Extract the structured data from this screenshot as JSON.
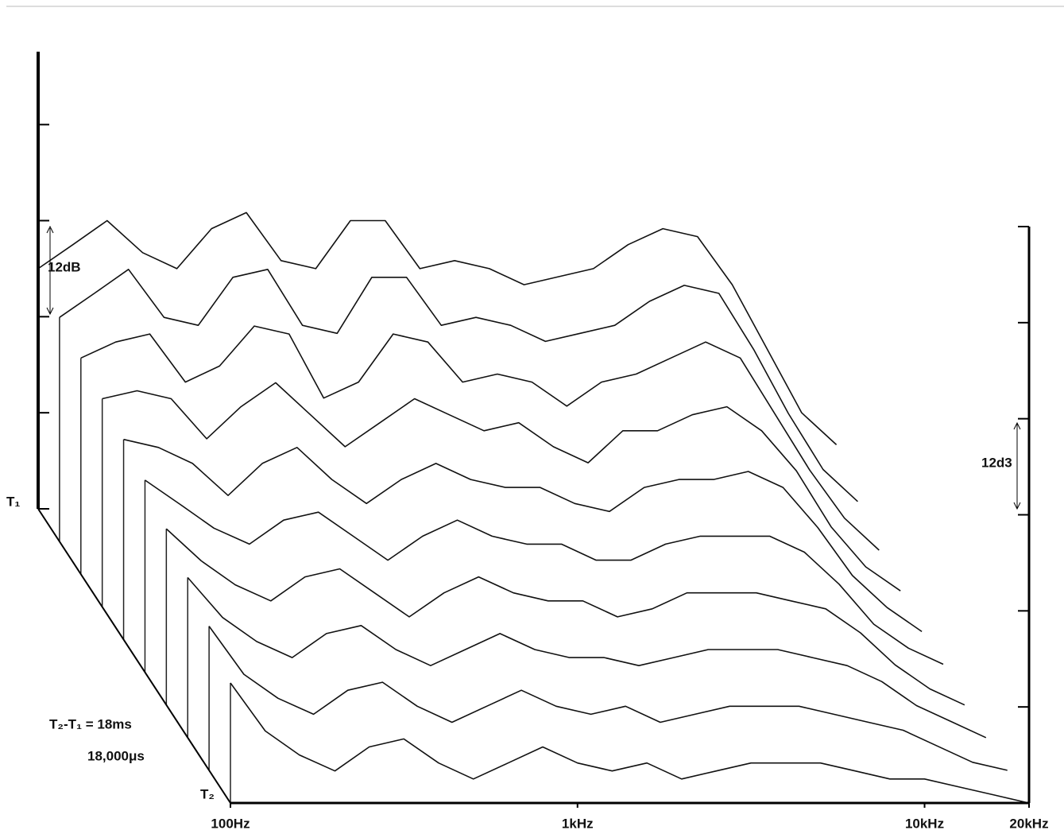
{
  "chart_data": {
    "type": "waterfall",
    "left_scale_label": "12dB",
    "right_scale_label": "12d3",
    "start_time_label": "T₁",
    "end_time_label": "T₂",
    "duration_label": "T₂-T₁ = 18ms",
    "duration_us_label": "18,000μs",
    "xscale": "log",
    "xlim": [
      100,
      20000
    ],
    "xticks": [
      {
        "value": 100,
        "label": "100Hz"
      },
      {
        "value": 1000,
        "label": "1kHz"
      },
      {
        "value": 10000,
        "label": "10kHz"
      },
      {
        "value": 20000,
        "label": "20kHz"
      }
    ],
    "ylim": [
      0,
      72
    ],
    "yticks": [
      0,
      12,
      24,
      36,
      48,
      60,
      72
    ],
    "x": [
      100,
      126,
      158,
      200,
      251,
      316,
      398,
      501,
      631,
      794,
      1000,
      1259,
      1585,
      1995,
      2512,
      3162,
      3981,
      5012,
      6310,
      7943,
      10000,
      12589,
      15849,
      19953
    ],
    "series": [
      {
        "color": "#111111",
        "values": [
          30,
          33,
          36,
          32,
          30,
          35,
          37,
          31,
          30,
          36,
          36,
          30,
          31,
          30,
          28,
          29,
          30,
          33,
          35,
          34,
          28,
          20,
          12,
          8
        ]
      },
      {
        "color": "#111111",
        "values": [
          28,
          31,
          34,
          28,
          27,
          33,
          34,
          27,
          26,
          33,
          33,
          27,
          28,
          27,
          25,
          26,
          27,
          30,
          32,
          31,
          24,
          16,
          9,
          5
        ]
      },
      {
        "color": "#111111",
        "values": [
          27,
          29,
          30,
          24,
          26,
          31,
          30,
          22,
          24,
          30,
          29,
          24,
          25,
          24,
          21,
          24,
          25,
          27,
          29,
          27,
          20,
          13,
          7,
          3
        ]
      },
      {
        "color": "#111111",
        "values": [
          26,
          27,
          26,
          21,
          25,
          28,
          24,
          20,
          23,
          26,
          24,
          22,
          23,
          20,
          18,
          22,
          22,
          24,
          25,
          22,
          17,
          10,
          5,
          2
        ]
      },
      {
        "color": "#111111",
        "values": [
          25,
          24,
          22,
          18,
          22,
          24,
          20,
          17,
          20,
          22,
          20,
          19,
          19,
          17,
          16,
          19,
          20,
          20,
          21,
          19,
          14,
          8,
          4,
          1
        ]
      },
      {
        "color": "#111111",
        "values": [
          24,
          21,
          18,
          16,
          19,
          20,
          17,
          14,
          17,
          19,
          17,
          16,
          16,
          14,
          14,
          16,
          17,
          17,
          17,
          15,
          11,
          6,
          3,
          1
        ]
      },
      {
        "color": "#111111",
        "values": [
          22,
          18,
          15,
          13,
          16,
          17,
          14,
          11,
          14,
          16,
          14,
          13,
          13,
          11,
          12,
          14,
          14,
          14,
          13,
          12,
          9,
          5,
          2,
          0
        ]
      },
      {
        "color": "#111111",
        "values": [
          20,
          15,
          12,
          10,
          13,
          14,
          11,
          9,
          11,
          13,
          11,
          10,
          10,
          9,
          10,
          11,
          11,
          11,
          10,
          9,
          7,
          4,
          2,
          0
        ]
      },
      {
        "color": "#111111",
        "values": [
          18,
          12,
          9,
          7,
          10,
          11,
          8,
          6,
          8,
          10,
          8,
          7,
          8,
          6,
          7,
          8,
          8,
          8,
          7,
          6,
          5,
          3,
          1,
          0
        ]
      },
      {
        "color": "#111111",
        "values": [
          15,
          9,
          6,
          4,
          7,
          8,
          5,
          3,
          5,
          7,
          5,
          4,
          5,
          3,
          4,
          5,
          5,
          5,
          4,
          3,
          3,
          2,
          1,
          0
        ]
      }
    ]
  }
}
